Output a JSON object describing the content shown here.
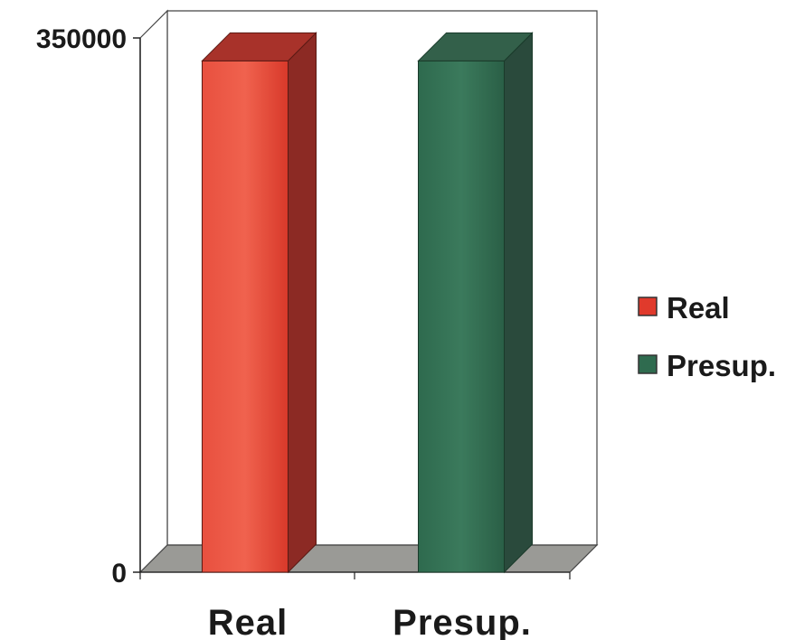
{
  "chart_data": {
    "type": "bar",
    "style": "3d",
    "categories": [
      "Real",
      "Presup."
    ],
    "values": [
      335000,
      335000
    ],
    "series_colors": [
      "#e03a2c",
      "#2f6b4f"
    ],
    "ylim": [
      0,
      350000
    ],
    "yticks": [
      "0",
      "350000"
    ],
    "grid": false,
    "legend": {
      "position": "right",
      "entries": [
        {
          "label": "Real",
          "color": "#e03a2c"
        },
        {
          "label": "Presup.",
          "color": "#2f6b4f"
        }
      ]
    }
  }
}
